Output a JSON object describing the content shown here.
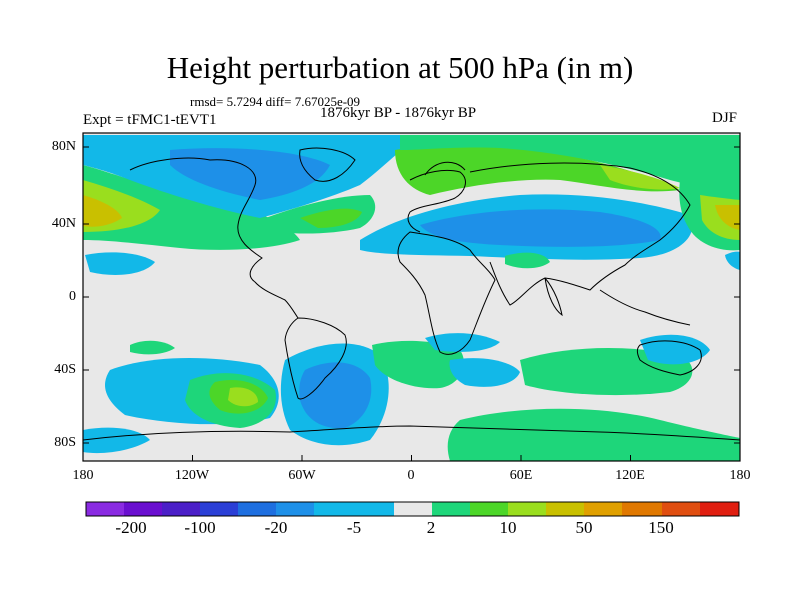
{
  "title": "Height perturbation at 500 hPa (in m)",
  "stats": "rmsd= 5.7294 diff= 7.67025e-09",
  "period": "1876kyr BP - 1876kyr BP",
  "expt": "Expt = tFMC1-tEVT1",
  "season": "DJF",
  "lat_labels": [
    "80N",
    "40N",
    "0",
    "40S",
    "80S"
  ],
  "lon_labels": [
    "180",
    "120W",
    "60W",
    "0",
    "60E",
    "120E",
    "180"
  ],
  "colorbar": {
    "labels": [
      "-200",
      "-100",
      "-20",
      "-5",
      "2",
      "10",
      "50",
      "150"
    ],
    "colors": [
      "#8a2be2",
      "#6a0fd0",
      "#4b1fc8",
      "#2b3fd6",
      "#1e6fe0",
      "#1e90e8",
      "#12b8e8",
      "#e8e8e8",
      "#1ed67a",
      "#4cd628",
      "#9ade1e",
      "#c9c000",
      "#e0a000",
      "#e07800",
      "#e04e10",
      "#e01e10"
    ]
  },
  "colors": {
    "background": "#e8e8e8",
    "neg_light": "#12b8e8",
    "neg_mid": "#1e90e8",
    "pos_light": "#1ed67a",
    "pos_mid": "#4cd628",
    "pos_high": "#9ade1e",
    "pos_peak": "#c9c000"
  }
}
